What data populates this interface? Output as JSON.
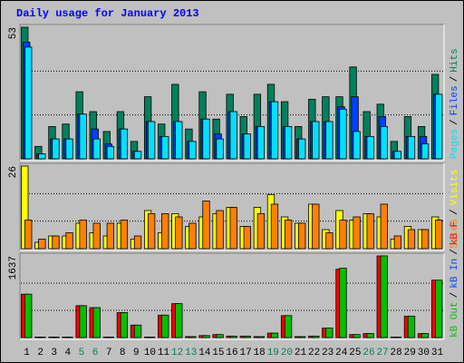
{
  "chart_data": [
    {
      "type": "bar",
      "title": "Daily usage for January 2013",
      "ylim": [
        0,
        53
      ],
      "yticks": [
        53
      ],
      "legend_separator": "/",
      "series": [
        {
          "name": "Hits",
          "color": "#00805c",
          "values": [
            53,
            5,
            13,
            14,
            27,
            19,
            11,
            19,
            7,
            25,
            14,
            30,
            12,
            27,
            16,
            26,
            17,
            26,
            30,
            23,
            13,
            24,
            25,
            25,
            37,
            19,
            22,
            7,
            17,
            13,
            34
          ]
        },
        {
          "name": "Files",
          "color": "#0040ff",
          "values": [
            47,
            2,
            8,
            8,
            18,
            12,
            6,
            12,
            3,
            15,
            9,
            15,
            7,
            16,
            10,
            19,
            10,
            13,
            23,
            13,
            8,
            15,
            15,
            21,
            25,
            9,
            17,
            3,
            9,
            9,
            26
          ]
        },
        {
          "name": "Pages",
          "color": "#00e0ff",
          "values": [
            45,
            2,
            8,
            8,
            18,
            8,
            5,
            12,
            3,
            15,
            9,
            15,
            7,
            16,
            8,
            19,
            10,
            13,
            23,
            13,
            8,
            15,
            15,
            20,
            11,
            9,
            13,
            3,
            9,
            6,
            26
          ]
        }
      ]
    },
    {
      "type": "bar",
      "ylim": [
        0,
        26
      ],
      "yticks": [
        26
      ],
      "series": [
        {
          "name": "Visits",
          "color": "#ffff00",
          "values": [
            26,
            2,
            4,
            4,
            8,
            5,
            4,
            8,
            3,
            12,
            5,
            11,
            7,
            10,
            11,
            13,
            7,
            13,
            17,
            10,
            8,
            14,
            6,
            12,
            9,
            11,
            10,
            3,
            7,
            6,
            10
          ]
        },
        {
          "name": "Sites",
          "color": "#ff8000",
          "values": [
            9,
            3,
            4,
            5,
            9,
            8,
            8,
            9,
            4,
            11,
            11,
            10,
            8,
            15,
            12,
            13,
            7,
            11,
            14,
            9,
            8,
            14,
            5,
            9,
            10,
            11,
            14,
            4,
            6,
            6,
            9
          ]
        }
      ]
    },
    {
      "type": "bar",
      "ylim": [
        0,
        1637
      ],
      "yticks": [
        1637
      ],
      "categories": [
        "1",
        "2",
        "3",
        "4",
        "5",
        "6",
        "7",
        "8",
        "9",
        "10",
        "11",
        "12",
        "13",
        "14",
        "15",
        "16",
        "17",
        "18",
        "19",
        "20",
        "21",
        "22",
        "23",
        "24",
        "25",
        "26",
        "27",
        "28",
        "29",
        "30",
        "31"
      ],
      "category_colors": [
        "#000000",
        "#000000",
        "#000000",
        "#000000",
        "#00805c",
        "#00805c",
        "#000000",
        "#000000",
        "#000000",
        "#000000",
        "#000000",
        "#00805c",
        "#00805c",
        "#000000",
        "#000000",
        "#000000",
        "#000000",
        "#000000",
        "#00805c",
        "#00805c",
        "#000000",
        "#000000",
        "#000000",
        "#000000",
        "#000000",
        "#00805c",
        "#00805c",
        "#000000",
        "#000000",
        "#000000",
        "#000000"
      ],
      "series": [
        {
          "name": "kB F",
          "color": "#ff0000",
          "values": [
            870,
            10,
            10,
            10,
            640,
            600,
            10,
            500,
            250,
            10,
            450,
            680,
            20,
            40,
            60,
            30,
            30,
            20,
            90,
            440,
            20,
            30,
            190,
            1370,
            60,
            80,
            1637,
            10,
            430,
            80,
            1150
          ]
        },
        {
          "name": "kB In",
          "color": "#0040ff",
          "values": [
            0,
            0,
            0,
            0,
            0,
            0,
            0,
            0,
            0,
            0,
            0,
            0,
            0,
            0,
            0,
            0,
            0,
            0,
            0,
            0,
            0,
            0,
            0,
            0,
            0,
            0,
            0,
            0,
            0,
            0,
            0
          ]
        },
        {
          "name": "kB Out",
          "color": "#00c000",
          "values": [
            870,
            10,
            10,
            10,
            640,
            600,
            10,
            500,
            250,
            10,
            450,
            680,
            20,
            40,
            60,
            30,
            30,
            20,
            90,
            440,
            20,
            30,
            190,
            1390,
            60,
            80,
            1637,
            10,
            430,
            80,
            1150
          ]
        }
      ]
    }
  ]
}
